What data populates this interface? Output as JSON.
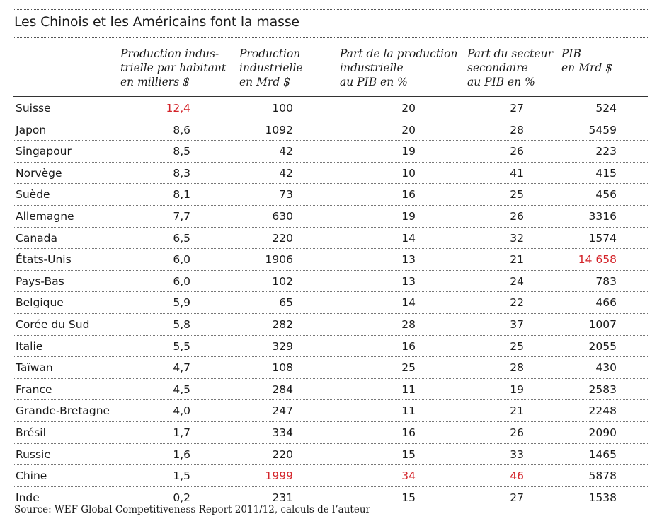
{
  "title": "Les Chinois et les Américains font la masse",
  "headers": [
    "Production indus-\ntrielle par habitant\nen milliers $",
    "Production\nindustrielle\nen Mrd $",
    "Part de la production\nindustrielle\nau PIB en %",
    "Part du secteur\nsecondaire\nau PIB en %",
    "PIB\nen Mrd $"
  ],
  "highlight_color": "#d4242a",
  "rows": [
    {
      "country": "Suisse",
      "v": [
        "12,4",
        "100",
        "20",
        "27",
        "524"
      ],
      "red": [
        true,
        false,
        false,
        false,
        false
      ]
    },
    {
      "country": "Japon",
      "v": [
        "8,6",
        "1092",
        "20",
        "28",
        "5459"
      ],
      "red": [
        false,
        false,
        false,
        false,
        false
      ]
    },
    {
      "country": "Singapour",
      "v": [
        "8,5",
        "42",
        "19",
        "26",
        "223"
      ],
      "red": [
        false,
        false,
        false,
        false,
        false
      ]
    },
    {
      "country": "Norvège",
      "v": [
        "8,3",
        "42",
        "10",
        "41",
        "415"
      ],
      "red": [
        false,
        false,
        false,
        false,
        false
      ]
    },
    {
      "country": "Suède",
      "v": [
        "8,1",
        "73",
        "16",
        "25",
        "456"
      ],
      "red": [
        false,
        false,
        false,
        false,
        false
      ]
    },
    {
      "country": "Allemagne",
      "v": [
        "7,7",
        "630",
        "19",
        "26",
        "3316"
      ],
      "red": [
        false,
        false,
        false,
        false,
        false
      ]
    },
    {
      "country": "Canada",
      "v": [
        "6,5",
        "220",
        "14",
        "32",
        "1574"
      ],
      "red": [
        false,
        false,
        false,
        false,
        false
      ]
    },
    {
      "country": "États-Unis",
      "v": [
        "6,0",
        "1906",
        "13",
        "21",
        "14 658"
      ],
      "red": [
        false,
        false,
        false,
        false,
        true
      ]
    },
    {
      "country": "Pays-Bas",
      "v": [
        "6,0",
        "102",
        "13",
        "24",
        "783"
      ],
      "red": [
        false,
        false,
        false,
        false,
        false
      ]
    },
    {
      "country": "Belgique",
      "v": [
        "5,9",
        "65",
        "14",
        "22",
        "466"
      ],
      "red": [
        false,
        false,
        false,
        false,
        false
      ]
    },
    {
      "country": "Corée du Sud",
      "v": [
        "5,8",
        "282",
        "28",
        "37",
        "1007"
      ],
      "red": [
        false,
        false,
        false,
        false,
        false
      ]
    },
    {
      "country": "Italie",
      "v": [
        "5,5",
        "329",
        "16",
        "25",
        "2055"
      ],
      "red": [
        false,
        false,
        false,
        false,
        false
      ]
    },
    {
      "country": "Taïwan",
      "v": [
        "4,7",
        "108",
        "25",
        "28",
        "430"
      ],
      "red": [
        false,
        false,
        false,
        false,
        false
      ]
    },
    {
      "country": "France",
      "v": [
        "4,5",
        "284",
        "11",
        "19",
        "2583"
      ],
      "red": [
        false,
        false,
        false,
        false,
        false
      ]
    },
    {
      "country": "Grande-Bretagne",
      "v": [
        "4,0",
        "247",
        "11",
        "21",
        "2248"
      ],
      "red": [
        false,
        false,
        false,
        false,
        false
      ]
    },
    {
      "country": "Brésil",
      "v": [
        "1,7",
        "334",
        "16",
        "26",
        "2090"
      ],
      "red": [
        false,
        false,
        false,
        false,
        false
      ]
    },
    {
      "country": "Russie",
      "v": [
        "1,6",
        "220",
        "15",
        "33",
        "1465"
      ],
      "red": [
        false,
        false,
        false,
        false,
        false
      ]
    },
    {
      "country": "Chine",
      "v": [
        "1,5",
        "1999",
        "34",
        "46",
        "5878"
      ],
      "red": [
        false,
        true,
        true,
        true,
        false
      ]
    },
    {
      "country": "Inde",
      "v": [
        "0,2",
        "231",
        "15",
        "27",
        "1538"
      ],
      "red": [
        false,
        false,
        false,
        false,
        false
      ]
    }
  ],
  "source": "Source: WEF Global Competitiveness Report 2011/12, calculs de l’auteur"
}
